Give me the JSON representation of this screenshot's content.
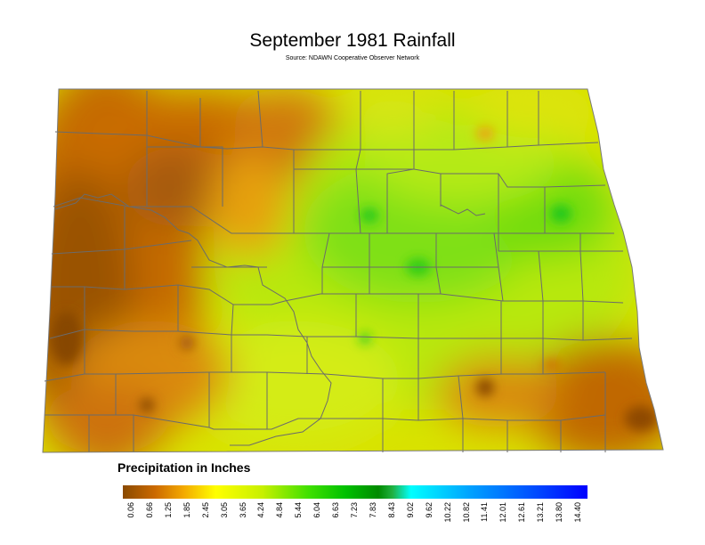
{
  "title": "September 1981 Rainfall",
  "subtitle": "Source: NDAWN Cooperative Observer Network",
  "legend": {
    "title": "Precipitation in Inches",
    "ticks": [
      "0.06",
      "0.66",
      "1.25",
      "1.85",
      "2.45",
      "3.05",
      "3.65",
      "4.24",
      "4.84",
      "5.44",
      "6.04",
      "6.63",
      "7.23",
      "7.83",
      "8.43",
      "9.02",
      "9.62",
      "10.22",
      "10.82",
      "11.41",
      "12.01",
      "12.61",
      "13.21",
      "13.80",
      "14.40"
    ],
    "color_stops": [
      "#8a4a00",
      "#cc6a00",
      "#f0a000",
      "#ffff00",
      "#c8f000",
      "#40e000",
      "#00c000",
      "#008a00",
      "#00ffff",
      "#00b0ff",
      "#0060ff",
      "#0000ff"
    ]
  },
  "colors": {
    "dry": "#c06800",
    "very_dry": "#9a5206",
    "moderate": "#e8ea10",
    "wet": "#60e010",
    "county_lines": "#6b6b6b"
  }
}
